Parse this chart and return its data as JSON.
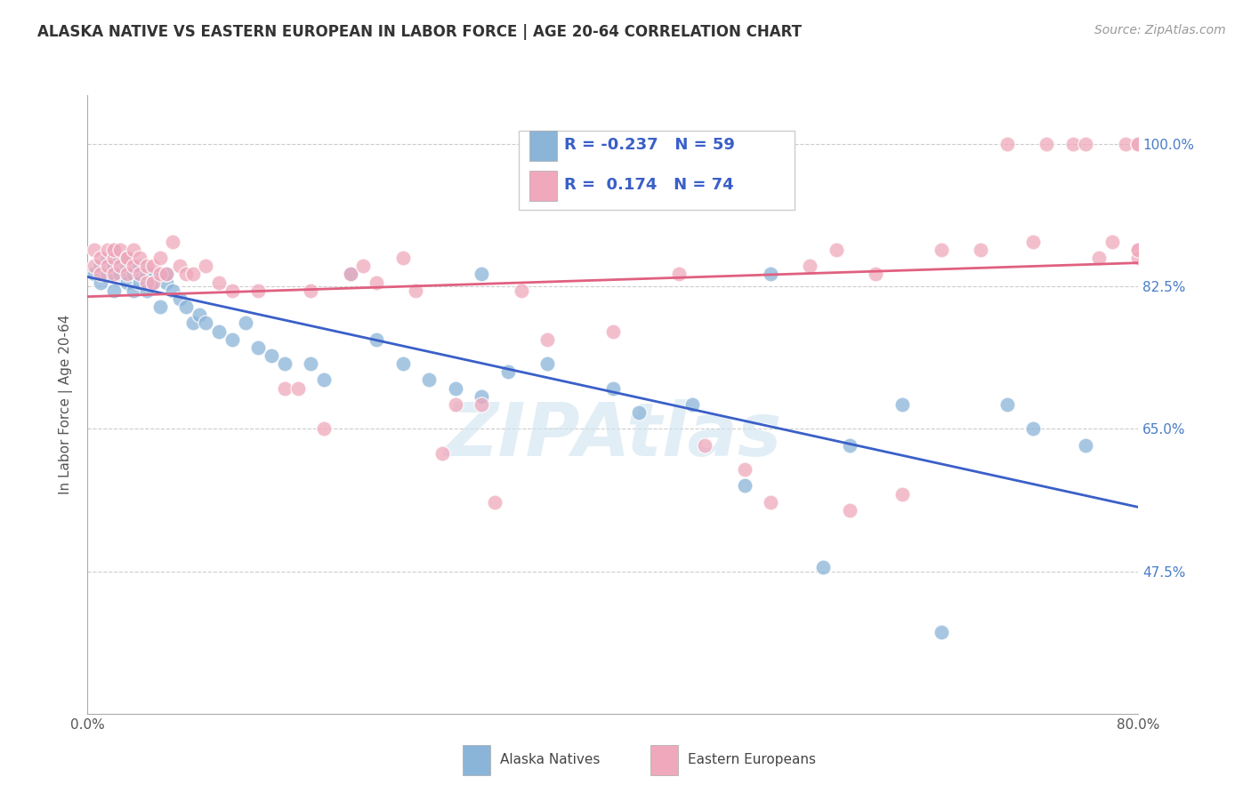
{
  "title": "ALASKA NATIVE VS EASTERN EUROPEAN IN LABOR FORCE | AGE 20-64 CORRELATION CHART",
  "source": "Source: ZipAtlas.com",
  "ylabel": "In Labor Force | Age 20-64",
  "xlim": [
    0.0,
    0.8
  ],
  "ylim": [
    0.3,
    1.06
  ],
  "ytick_positions": [
    0.475,
    0.65,
    0.825,
    1.0
  ],
  "ytick_labels": [
    "47.5%",
    "65.0%",
    "82.5%",
    "100.0%"
  ],
  "blue_color": "#8ab4d8",
  "pink_color": "#f0a8bc",
  "blue_line_color": "#3a5fc8",
  "pink_line_color": "#e06080",
  "legend_blue_label": "Alaska Natives",
  "legend_pink_label": "Eastern Europeans",
  "R_blue": -0.237,
  "N_blue": 59,
  "R_pink": 0.174,
  "N_pink": 74,
  "blue_x": [
    0.005,
    0.01,
    0.01,
    0.015,
    0.015,
    0.02,
    0.02,
    0.02,
    0.025,
    0.025,
    0.03,
    0.03,
    0.03,
    0.035,
    0.035,
    0.04,
    0.04,
    0.045,
    0.045,
    0.05,
    0.05,
    0.055,
    0.06,
    0.06,
    0.065,
    0.07,
    0.075,
    0.08,
    0.085,
    0.09,
    0.1,
    0.11,
    0.12,
    0.13,
    0.14,
    0.15,
    0.17,
    0.18,
    0.2,
    0.22,
    0.24,
    0.26,
    0.28,
    0.3,
    0.3,
    0.32,
    0.35,
    0.4,
    0.42,
    0.46,
    0.5,
    0.52,
    0.56,
    0.58,
    0.62,
    0.65,
    0.7,
    0.72,
    0.76
  ],
  "blue_y": [
    0.84,
    0.85,
    0.83,
    0.86,
    0.84,
    0.87,
    0.85,
    0.82,
    0.86,
    0.84,
    0.85,
    0.83,
    0.86,
    0.84,
    0.82,
    0.85,
    0.83,
    0.84,
    0.82,
    0.84,
    0.83,
    0.8,
    0.83,
    0.84,
    0.82,
    0.81,
    0.8,
    0.78,
    0.79,
    0.78,
    0.77,
    0.76,
    0.78,
    0.75,
    0.74,
    0.73,
    0.73,
    0.71,
    0.84,
    0.76,
    0.73,
    0.71,
    0.7,
    0.84,
    0.69,
    0.72,
    0.73,
    0.7,
    0.67,
    0.68,
    0.58,
    0.84,
    0.48,
    0.63,
    0.68,
    0.4,
    0.68,
    0.65,
    0.63
  ],
  "pink_x": [
    0.005,
    0.005,
    0.01,
    0.01,
    0.015,
    0.015,
    0.02,
    0.02,
    0.02,
    0.025,
    0.025,
    0.03,
    0.03,
    0.03,
    0.035,
    0.035,
    0.04,
    0.04,
    0.045,
    0.045,
    0.05,
    0.05,
    0.055,
    0.055,
    0.06,
    0.065,
    0.07,
    0.075,
    0.08,
    0.09,
    0.1,
    0.11,
    0.13,
    0.15,
    0.16,
    0.17,
    0.18,
    0.2,
    0.21,
    0.22,
    0.24,
    0.25,
    0.27,
    0.28,
    0.3,
    0.31,
    0.33,
    0.35,
    0.4,
    0.42,
    0.45,
    0.47,
    0.5,
    0.52,
    0.55,
    0.57,
    0.58,
    0.6,
    0.62,
    0.65,
    0.68,
    0.7,
    0.72,
    0.73,
    0.75,
    0.76,
    0.77,
    0.78,
    0.79,
    0.8,
    0.8,
    0.8,
    0.8,
    0.8
  ],
  "pink_y": [
    0.87,
    0.85,
    0.86,
    0.84,
    0.87,
    0.85,
    0.86,
    0.84,
    0.87,
    0.85,
    0.87,
    0.86,
    0.84,
    0.86,
    0.85,
    0.87,
    0.84,
    0.86,
    0.85,
    0.83,
    0.85,
    0.83,
    0.84,
    0.86,
    0.84,
    0.88,
    0.85,
    0.84,
    0.84,
    0.85,
    0.83,
    0.82,
    0.82,
    0.7,
    0.7,
    0.82,
    0.65,
    0.84,
    0.85,
    0.83,
    0.86,
    0.82,
    0.62,
    0.68,
    0.68,
    0.56,
    0.82,
    0.76,
    0.77,
    1.0,
    0.84,
    0.63,
    0.6,
    0.56,
    0.85,
    0.87,
    0.55,
    0.84,
    0.57,
    0.87,
    0.87,
    1.0,
    0.88,
    1.0,
    1.0,
    1.0,
    0.86,
    0.88,
    1.0,
    0.87,
    0.86,
    1.0,
    1.0,
    0.87
  ],
  "watermark": "ZIPAtlas",
  "background_color": "#ffffff",
  "grid_color": "#cccccc"
}
